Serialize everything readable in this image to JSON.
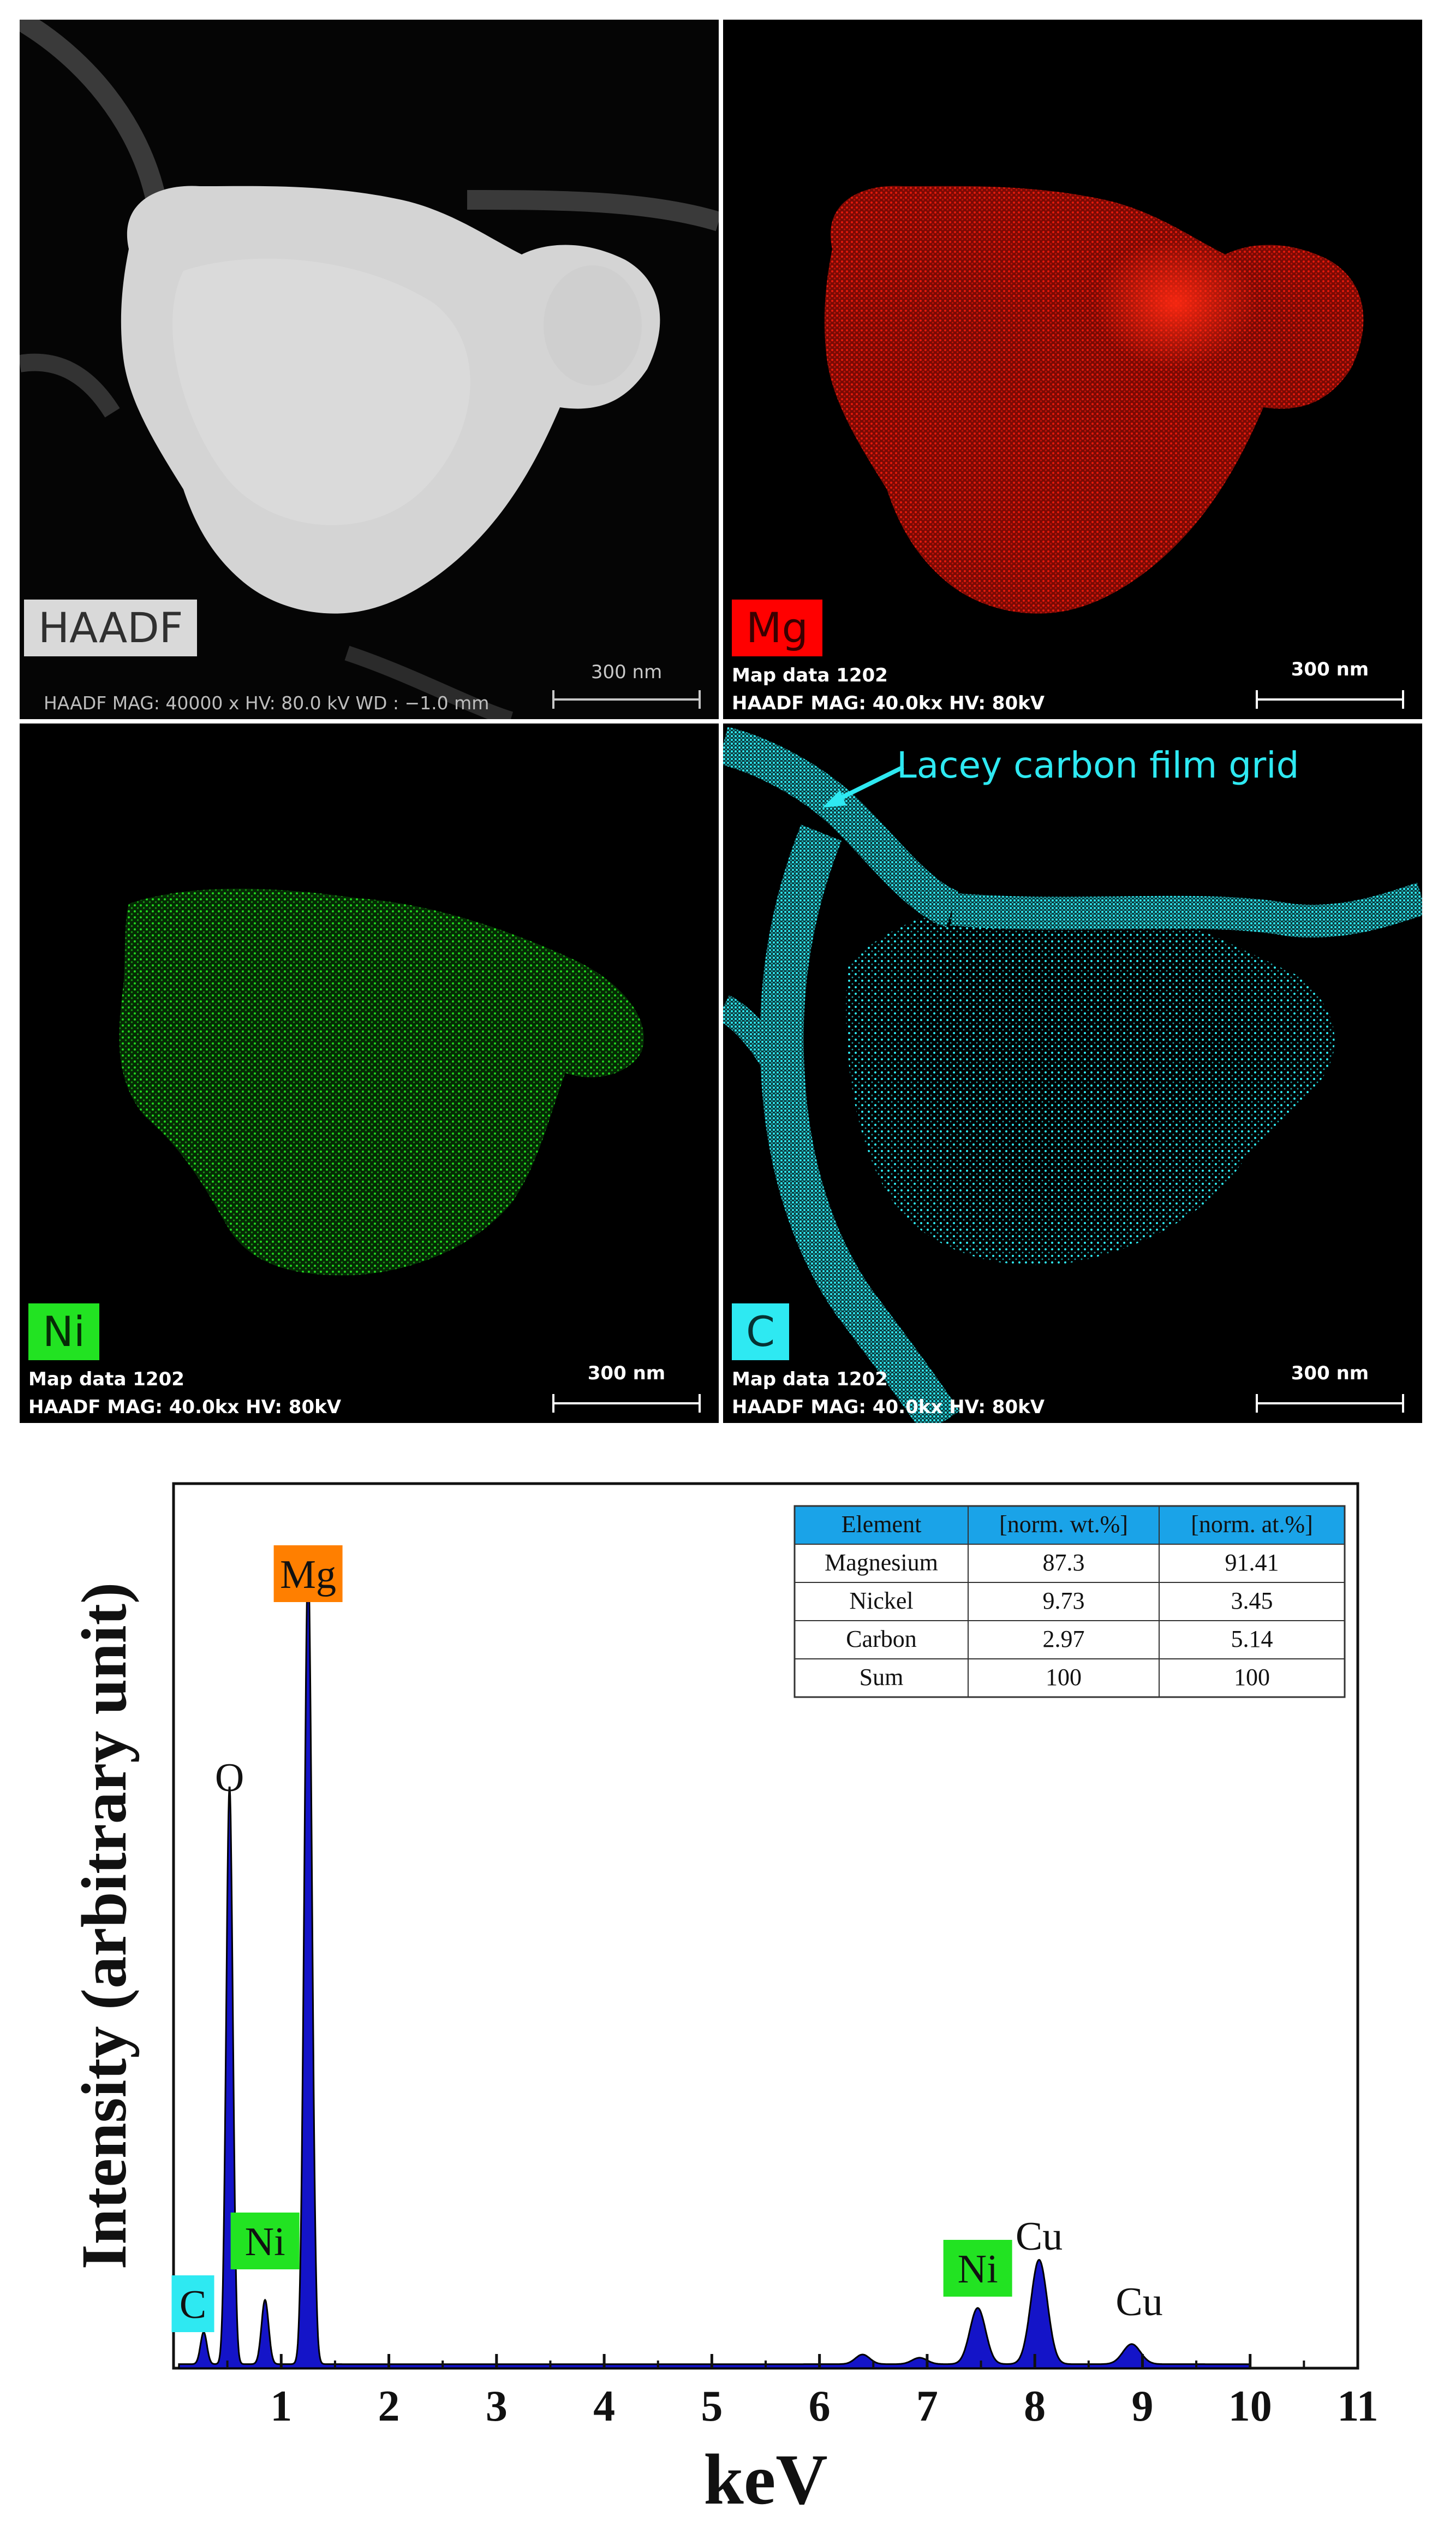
{
  "maps": {
    "haadf": {
      "label": "HAADF",
      "info": "HAADF MAG: 40000 x HV: 80.0 kV WD : −1.0 mm",
      "scale": "300 nm"
    },
    "mg": {
      "label": "Mg",
      "info_line1": "Map data 1202",
      "info_line2": "HAADF  MAG: 40.0kx  HV: 80kV",
      "scale": "300 nm",
      "color": "#e41a0c"
    },
    "ni": {
      "label": "Ni",
      "info_line1": "Map data 1202",
      "info_line2": "HAADF  MAG: 40.0kx  HV: 80kV",
      "scale": "300 nm",
      "color": "#22d61f"
    },
    "c": {
      "label": "C",
      "info_line1": "Map data 1202",
      "info_line2": "HAADF  MAG: 40.0kx  HV: 80kV",
      "scale": "300 nm",
      "color": "#2ee9f2",
      "annotation": "Lacey carbon film grid"
    }
  },
  "chart_data": {
    "type": "area",
    "xlabel": "keV",
    "ylabel": "Intensity (arbitrary unit)",
    "xlim": [
      0,
      11
    ],
    "ylim": [
      0,
      100
    ],
    "xticks": [
      "1",
      "2",
      "3",
      "4",
      "5",
      "6",
      "7",
      "8",
      "9",
      "10",
      "11"
    ],
    "fill_color": "#1414c8",
    "series": [
      {
        "x": [
          0.28,
          0.52,
          0.85,
          1.25,
          6.4,
          6.93,
          7.47,
          8.04,
          8.9
        ],
        "y": [
          4,
          72,
          8,
          100,
          1.2,
          0.8,
          7,
          13,
          2.5
        ]
      }
    ],
    "peak_labels": [
      {
        "text": "C",
        "kev": 0.18,
        "boxed": true,
        "box_color": "#2ee9f2"
      },
      {
        "text": "O",
        "kev": 0.52,
        "boxed": false
      },
      {
        "text": "Ni",
        "kev": 0.85,
        "boxed": true,
        "box_color": "#22e322"
      },
      {
        "text": "Mg",
        "kev": 1.25,
        "boxed": true,
        "box_color": "#ff7f00"
      },
      {
        "text": "Ni",
        "kev": 7.47,
        "boxed": true,
        "box_color": "#22e322"
      },
      {
        "text": "Cu",
        "kev": 8.04,
        "boxed": false
      },
      {
        "text": "Cu",
        "kev": 8.97,
        "boxed": false
      }
    ],
    "table": {
      "header_color": "#1aa3e8",
      "headers": [
        "Element",
        "[norm. wt.%]",
        "[norm. at.%]"
      ],
      "rows": [
        [
          "Magnesium",
          "87.3",
          "91.41"
        ],
        [
          "Nickel",
          "9.73",
          "3.45"
        ],
        [
          "Carbon",
          "2.97",
          "5.14"
        ],
        [
          "Sum",
          "100",
          "100"
        ]
      ]
    }
  }
}
